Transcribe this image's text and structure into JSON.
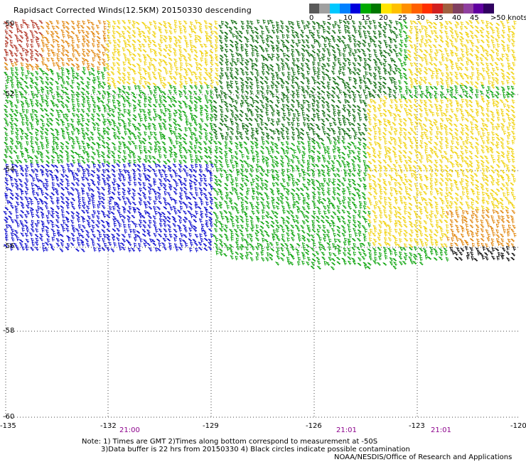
{
  "title": "Rapidsact Corrected Winds(12.5KM) 20150330 descending",
  "colorbar": {
    "labels": [
      "0",
      "5",
      "10",
      "15",
      "20",
      "25",
      "30",
      "35",
      "40",
      "45",
      ">50 knots"
    ],
    "colors": [
      "#5a5a5a",
      "#a0a0a0",
      "#00c8ff",
      "#0080ff",
      "#0000dd",
      "#00aa00",
      "#007700",
      "#ffe400",
      "#ffc000",
      "#ff9000",
      "#ff6000",
      "#ff3000",
      "#d02020",
      "#a06040",
      "#804060",
      "#9040a0",
      "#6000a0",
      "#300060"
    ]
  },
  "lat_labels": [
    "-50",
    "-52",
    "-54",
    "-56",
    "-58",
    "-60"
  ],
  "lon_labels": [
    "-135",
    "-132",
    "-129",
    "-126",
    "-123",
    "-120"
  ],
  "times": [
    "21:00",
    "21:01",
    "21:01"
  ],
  "notes": [
    "Note: 1) Times are GMT 2)Times along bottom correspond to measurement at -50S",
    "3)Data buffer is 22 hrs from 20150330 4) Black circles indicate possible contamination",
    "NOAA/NESDIS/Office of Research and Applications"
  ],
  "palette": {
    "dark_green": "#006400",
    "green": "#00a000",
    "blue": "#0000cc",
    "yellow": "#f0d000",
    "orange": "#e08000",
    "red_brown": "#b03020",
    "black": "#000000"
  }
}
